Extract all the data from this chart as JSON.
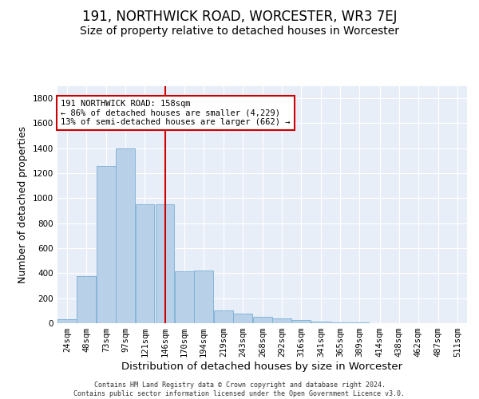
{
  "title": "191, NORTHWICK ROAD, WORCESTER, WR3 7EJ",
  "subtitle": "Size of property relative to detached houses in Worcester",
  "xlabel": "Distribution of detached houses by size in Worcester",
  "ylabel": "Number of detached properties",
  "footer_line1": "Contains HM Land Registry data © Crown copyright and database right 2024.",
  "footer_line2": "Contains public sector information licensed under the Open Government Licence v3.0.",
  "annotation_line1": "191 NORTHWICK ROAD: 158sqm",
  "annotation_line2": "← 86% of detached houses are smaller (4,229)",
  "annotation_line3": "13% of semi-detached houses are larger (662) →",
  "bar_color": "#b8d0e8",
  "bar_edge_color": "#7aafd4",
  "vline_color": "#cc0000",
  "background_color": "#e8eef8",
  "grid_color": "#ffffff",
  "categories": [
    "24sqm",
    "48sqm",
    "73sqm",
    "97sqm",
    "121sqm",
    "146sqm",
    "170sqm",
    "194sqm",
    "219sqm",
    "243sqm",
    "268sqm",
    "292sqm",
    "316sqm",
    "341sqm",
    "365sqm",
    "389sqm",
    "414sqm",
    "438sqm",
    "462sqm",
    "487sqm",
    "511sqm"
  ],
  "bin_starts": [
    24,
    48,
    73,
    97,
    121,
    146,
    170,
    194,
    219,
    243,
    268,
    292,
    316,
    341,
    365,
    389,
    414,
    438,
    462,
    487,
    511
  ],
  "bin_width": 24,
  "values": [
    30,
    380,
    1260,
    1400,
    950,
    950,
    415,
    420,
    105,
    75,
    50,
    40,
    25,
    10,
    8,
    5,
    3,
    1,
    1,
    0,
    0
  ],
  "ylim": [
    0,
    1900
  ],
  "yticks": [
    0,
    200,
    400,
    600,
    800,
    1000,
    1200,
    1400,
    1600,
    1800
  ],
  "vline_x": 158,
  "title_fontsize": 12,
  "subtitle_fontsize": 10,
  "tick_fontsize": 7.5,
  "ylabel_fontsize": 9,
  "xlabel_fontsize": 9.5,
  "annot_fontsize": 7.5
}
